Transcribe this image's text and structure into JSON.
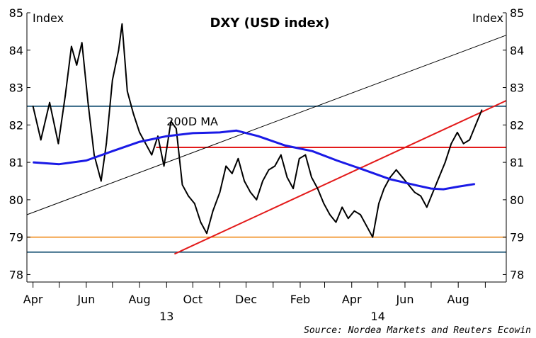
{
  "chart_data": {
    "type": "line",
    "title": "DXY (USD index)",
    "y_unit_left": "Index",
    "y_unit_right": "Index",
    "source": "Source: Nordea Markets and Reuters Ecowin",
    "ylim": [
      77.8,
      85
    ],
    "y_ticks": [
      78,
      79,
      80,
      81,
      82,
      83,
      84,
      85
    ],
    "y_tick_labels": [
      "78",
      "79",
      "80",
      "81",
      "82",
      "83",
      "84",
      "85"
    ],
    "grid": false,
    "x_ticks": [
      {
        "label": "Apr",
        "date": "2013-04-01"
      },
      {
        "label": "Jun",
        "date": "2013-06-01"
      },
      {
        "label": "Aug",
        "date": "2013-08-01"
      },
      {
        "label": "Oct",
        "date": "2013-10-01"
      },
      {
        "label": "Dec",
        "date": "2013-12-01"
      },
      {
        "label": "Feb",
        "date": "2014-02-01"
      },
      {
        "label": "Apr",
        "date": "2014-04-01"
      },
      {
        "label": "Jun",
        "date": "2014-06-01"
      },
      {
        "label": "Aug",
        "date": "2014-08-01"
      }
    ],
    "x_year_labels": [
      {
        "label": "13",
        "date": "2013-09-01"
      },
      {
        "label": "14",
        "date": "2014-05-01"
      }
    ],
    "x_range": [
      "2013-03-25",
      "2014-09-25"
    ],
    "series": [
      {
        "name": "DXY",
        "color": "#000000",
        "x": [
          "2013-04-01",
          "2013-04-10",
          "2013-04-20",
          "2013-04-30",
          "2013-05-08",
          "2013-05-15",
          "2013-05-21",
          "2013-05-27",
          "2013-06-03",
          "2013-06-10",
          "2013-06-18",
          "2013-06-24",
          "2013-07-01",
          "2013-07-08",
          "2013-07-12",
          "2013-07-18",
          "2013-07-25",
          "2013-08-01",
          "2013-08-08",
          "2013-08-15",
          "2013-08-22",
          "2013-08-29",
          "2013-09-06",
          "2013-09-12",
          "2013-09-19",
          "2013-09-26",
          "2013-10-03",
          "2013-10-10",
          "2013-10-17",
          "2013-10-24",
          "2013-11-01",
          "2013-11-08",
          "2013-11-15",
          "2013-11-22",
          "2013-11-29",
          "2013-12-06",
          "2013-12-13",
          "2013-12-20",
          "2013-12-27",
          "2014-01-03",
          "2014-01-10",
          "2014-01-17",
          "2014-01-24",
          "2014-01-31",
          "2014-02-07",
          "2014-02-14",
          "2014-02-21",
          "2014-02-28",
          "2014-03-07",
          "2014-03-14",
          "2014-03-21",
          "2014-03-28",
          "2014-04-04",
          "2014-04-11",
          "2014-04-18",
          "2014-04-25",
          "2014-05-02",
          "2014-05-08",
          "2014-05-15",
          "2014-05-22",
          "2014-05-29",
          "2014-06-05",
          "2014-06-12",
          "2014-06-19",
          "2014-06-26",
          "2014-07-03",
          "2014-07-10",
          "2014-07-17",
          "2014-07-24",
          "2014-07-31",
          "2014-08-07",
          "2014-08-14",
          "2014-08-21",
          "2014-08-28"
        ],
        "values": [
          82.5,
          81.6,
          82.6,
          81.5,
          82.8,
          84.1,
          83.6,
          84.2,
          82.6,
          81.2,
          80.5,
          81.5,
          83.2,
          84.0,
          84.7,
          82.9,
          82.3,
          81.8,
          81.5,
          81.2,
          81.7,
          80.9,
          82.1,
          81.9,
          80.4,
          80.1,
          79.9,
          79.4,
          79.1,
          79.7,
          80.2,
          80.9,
          80.7,
          81.1,
          80.5,
          80.2,
          80.0,
          80.5,
          80.8,
          80.9,
          81.2,
          80.6,
          80.3,
          81.1,
          81.2,
          80.6,
          80.3,
          79.9,
          79.6,
          79.4,
          79.8,
          79.5,
          79.7,
          79.6,
          79.3,
          79.0,
          79.9,
          80.3,
          80.6,
          80.8,
          80.6,
          80.4,
          80.2,
          80.1,
          79.8,
          80.2,
          80.6,
          81.0,
          81.5,
          81.8,
          81.5,
          81.6,
          82.0,
          82.4
        ]
      },
      {
        "name": "200D MA",
        "color": "#1a1ae6",
        "x": [
          "2013-04-01",
          "2013-05-01",
          "2013-06-01",
          "2013-07-01",
          "2013-08-01",
          "2013-09-01",
          "2013-10-01",
          "2013-11-01",
          "2013-11-20",
          "2013-12-15",
          "2014-01-15",
          "2014-02-15",
          "2014-03-15",
          "2014-04-15",
          "2014-05-15",
          "2014-06-15",
          "2014-07-01",
          "2014-07-15",
          "2014-08-01",
          "2014-08-20"
        ],
        "values": [
          81.0,
          80.95,
          81.05,
          81.3,
          81.55,
          81.7,
          81.78,
          81.8,
          81.85,
          81.7,
          81.45,
          81.3,
          81.05,
          80.8,
          80.55,
          80.38,
          80.3,
          80.28,
          80.35,
          80.42
        ]
      }
    ],
    "reference_lines": [
      {
        "kind": "horizontal",
        "y": 82.5,
        "color": "#0f4a6e",
        "from": "2013-03-25",
        "to": "2014-09-25"
      },
      {
        "kind": "horizontal",
        "y": 78.6,
        "color": "#0f4a6e",
        "from": "2013-03-25",
        "to": "2014-09-25"
      },
      {
        "kind": "horizontal",
        "y": 79.0,
        "color": "#f08c1e",
        "from": "2013-03-25",
        "to": "2014-09-25"
      },
      {
        "kind": "horizontal",
        "y": 81.4,
        "color": "#e31a1a",
        "from": "2013-08-20",
        "to": "2014-09-25"
      },
      {
        "kind": "trend",
        "color": "#e31a1a",
        "from": [
          "2013-09-10",
          78.55
        ],
        "to": [
          "2014-09-25",
          82.65
        ]
      },
      {
        "kind": "trend",
        "color": "#000000",
        "from": [
          "2013-03-25",
          79.6
        ],
        "to": [
          "2014-09-25",
          84.4
        ]
      }
    ],
    "annotations": [
      {
        "text": "200D MA",
        "date": "2013-09-01",
        "y": 82.1
      }
    ]
  }
}
